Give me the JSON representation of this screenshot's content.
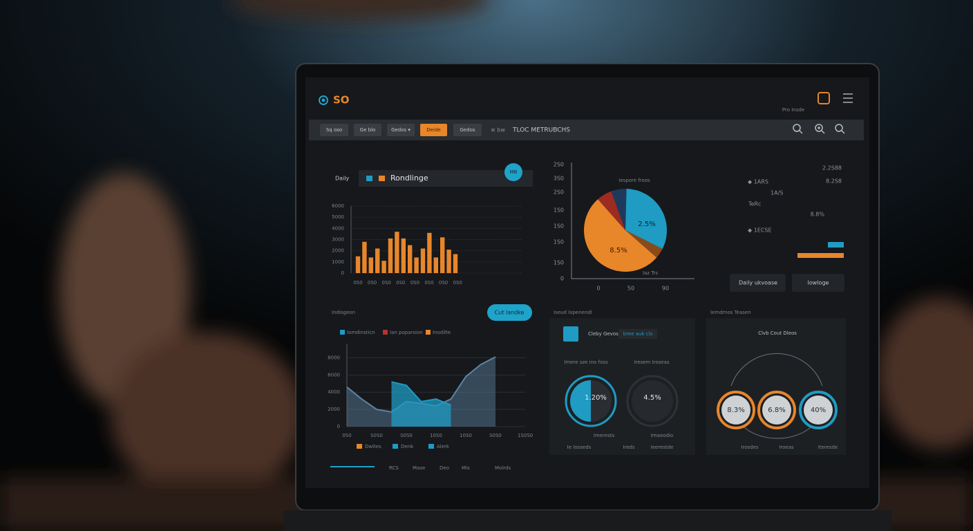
{
  "header": {
    "logo": "SO",
    "user": "Pro Insde"
  },
  "toolbar": {
    "buttons": [
      "Sq oso",
      "Ge blo",
      "Gedos ▾",
      "Deide",
      "Gedos"
    ],
    "menu": "≡ bw",
    "title": "TLOC METRUBCHS"
  },
  "bar_panel": {
    "label": "Daily",
    "title": "Rondlinge",
    "badge": "MB"
  },
  "pie_panel": {
    "y_axis_text": [
      "2S0",
      "3S0",
      "2S0",
      "1S0",
      "1S0",
      "1S0",
      "1S0",
      "0"
    ],
    "x_axis_text": [
      "0",
      "50",
      "90"
    ],
    "slice_labels": [
      "Iespore froos",
      "2.5%",
      "8.5%",
      "Iaz Trs"
    ]
  },
  "stats_panel": {
    "values": [
      "2.2S88",
      "8.2S8",
      "◆ 1ARS",
      "1A/S",
      "TeRc",
      "8.8%",
      "◆ 1ECSE"
    ],
    "buttons": [
      "Daily ukvoase",
      "Iowloge"
    ]
  },
  "area_panel": {
    "title": "Indisgeon",
    "button": "Cut landke",
    "legend": [
      {
        "label": "Iomdinsticn",
        "color": "#1f9bc4"
      },
      {
        "label": "Ian poparsion",
        "color": "#b8322a"
      },
      {
        "label": "Inodilte",
        "color": "#e8862a"
      }
    ],
    "footer_legend": [
      {
        "label": "Dwites",
        "color": "#e8862a"
      },
      {
        "label": "Denk",
        "color": "#1f9bc4"
      },
      {
        "label": "Alerk",
        "color": "#1f9bc4"
      }
    ],
    "nav": [
      "RCS",
      "Mase",
      "Deo",
      "Mis",
      "Molrds"
    ]
  },
  "donut_panel": {
    "title": "Iseud Iopenendl",
    "card": "Cleby Gevos",
    "chip": "bree auk cls",
    "labels": [
      "Imere sze ino foss",
      "Iresem Iroseas"
    ],
    "values": [
      "1.20%",
      "4.5%"
    ],
    "captions": [
      "Imerests",
      "Imaeodio"
    ],
    "footer": [
      "Ie Iosseds",
      "Ireds",
      "Ieerestde"
    ]
  },
  "gauge_panel": {
    "title": "Iemdmos Teasen",
    "subtitle": "Clvb Cout Dleos",
    "values": [
      "8.3%",
      "6.8%",
      "40%"
    ],
    "captions": [
      "Irosdes",
      "Iroeas",
      "Iteresde"
    ]
  },
  "chart_data": [
    {
      "type": "bar",
      "color": "#e8862a",
      "categories": [
        "0S0",
        null,
        "0S0",
        null,
        "0S0",
        null,
        "0S0",
        null,
        "0S0",
        null,
        "0S0",
        null,
        "0S0",
        null,
        "0S0",
        null
      ],
      "values": [
        1500,
        2800,
        1400,
        2200,
        1100,
        3100,
        3700,
        3100,
        2500,
        1400,
        2200,
        3600,
        1400,
        3200,
        2100,
        1700
      ],
      "ylim": [
        0,
        6000
      ],
      "yticks": [
        0,
        1000,
        2000,
        3000,
        4000,
        5000,
        6000
      ],
      "grid": true
    },
    {
      "type": "pie",
      "values": [
        6,
        32,
        4,
        52,
        6
      ],
      "colors": [
        "#1d3a5c",
        "#1f9bc4",
        "#8a4a1a",
        "#e8862a",
        "#9c2b22"
      ]
    },
    {
      "type": "area",
      "categories": [
        "0S0",
        null,
        "S0S0",
        null,
        "S0S0",
        null,
        "10S0",
        null,
        "10S0",
        null,
        "S0S0",
        null,
        "1S0S0"
      ],
      "series": [
        {
          "color": "#5d84a6",
          "values": [
            4600,
            3200,
            2000,
            1700,
            2900,
            2700,
            2400,
            3200,
            5800,
            7200,
            8100,
            null,
            null
          ]
        },
        {
          "color": "#1f9bc4",
          "values": [
            null,
            null,
            null,
            5200,
            4800,
            2900,
            3200,
            2500,
            null,
            null,
            null,
            null,
            null
          ]
        }
      ],
      "ylim": [
        0,
        9000
      ],
      "yticks": [
        0,
        2000,
        4000,
        6000,
        8000
      ],
      "grid": true
    }
  ]
}
